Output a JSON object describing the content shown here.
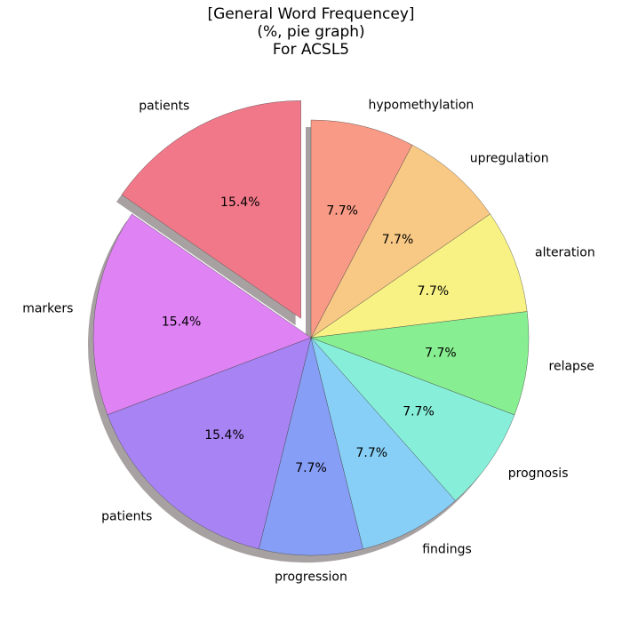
{
  "chart_data": {
    "type": "pie",
    "title": "[General Word Frequencey]\n(%, pie graph)\nFor ACSL5",
    "categories": [
      "patients",
      "markers",
      "patients",
      "progression",
      "findings",
      "prognosis",
      "relapse",
      "alteration",
      "upregulation",
      "hypomethylation"
    ],
    "values": [
      15.4,
      15.4,
      15.4,
      7.7,
      7.7,
      7.7,
      7.7,
      7.7,
      7.7,
      7.7
    ],
    "value_labels": [
      "15.4%",
      "15.4%",
      "15.4%",
      "7.7%",
      "7.7%",
      "7.7%",
      "7.7%",
      "7.7%",
      "7.7%",
      "7.7%"
    ],
    "colors": [
      "#f07888",
      "#de82f4",
      "#a883f4",
      "#879ef6",
      "#87cff6",
      "#87efd9",
      "#87ef91",
      "#f8f285",
      "#f8c885",
      "#f89a85"
    ],
    "exploded": [
      true,
      false,
      false,
      false,
      false,
      false,
      false,
      false,
      false,
      false
    ],
    "start_angle_deg": 90,
    "direction": "counterclockwise",
    "shadow": true,
    "legend": "none"
  }
}
